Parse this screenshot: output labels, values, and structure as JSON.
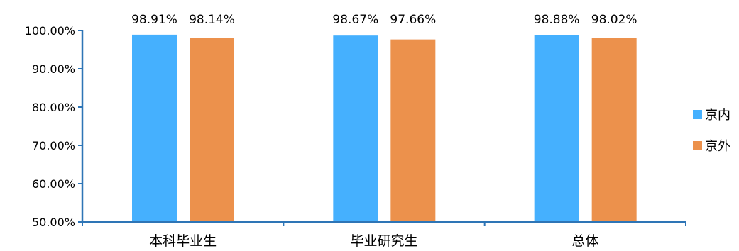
{
  "chart_data": {
    "type": "bar",
    "title": "",
    "xlabel": "",
    "ylabel": "",
    "categories": [
      "本科毕业生",
      "毕业研究生",
      "总体"
    ],
    "series": [
      {
        "name": "京内",
        "color": "#45B0FE",
        "values": [
          98.91,
          98.67,
          98.88
        ],
        "labels": [
          "98.91%",
          "98.67%",
          "98.88%"
        ]
      },
      {
        "name": "京外",
        "color": "#EC914C",
        "values": [
          98.14,
          97.66,
          98.02
        ],
        "labels": [
          "98.14%",
          "97.66%",
          "98.02%"
        ]
      }
    ],
    "ylim": [
      50,
      100
    ],
    "yticks": [
      50,
      60,
      70,
      80,
      90,
      100
    ],
    "ytick_labels": [
      "50.00%",
      "60.00%",
      "70.00%",
      "80.00%",
      "90.00%",
      "100.00%"
    ],
    "axis_color": "#2E75B6",
    "grid": false,
    "legend_position": "right"
  }
}
